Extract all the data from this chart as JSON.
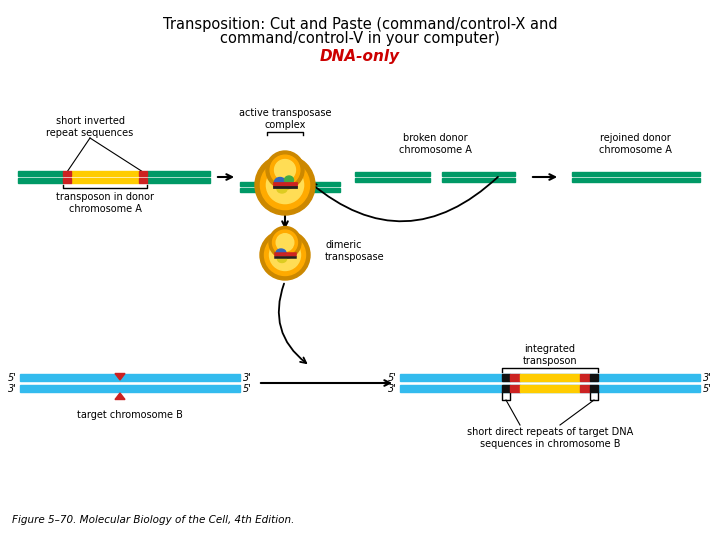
{
  "title_line1": "Transposition: Cut and Paste (command/control-X and",
  "title_line2": "command/control-V in your computer)",
  "subtitle": "DNA-only",
  "figure_caption": "Figure 5–70. Molecular Biology of the Cell, 4th Edition.",
  "bg_color": "#ffffff",
  "title_color": "#000000",
  "subtitle_color": "#cc0000",
  "dna_green": "#009966",
  "dna_yellow": "#ffcc00",
  "dna_red": "#cc2222",
  "dna_blue": "#33bbee",
  "transposase_outer": "#cc8800",
  "transposase_mid": "#ffaa00",
  "transposase_inner": "#ffdd55"
}
